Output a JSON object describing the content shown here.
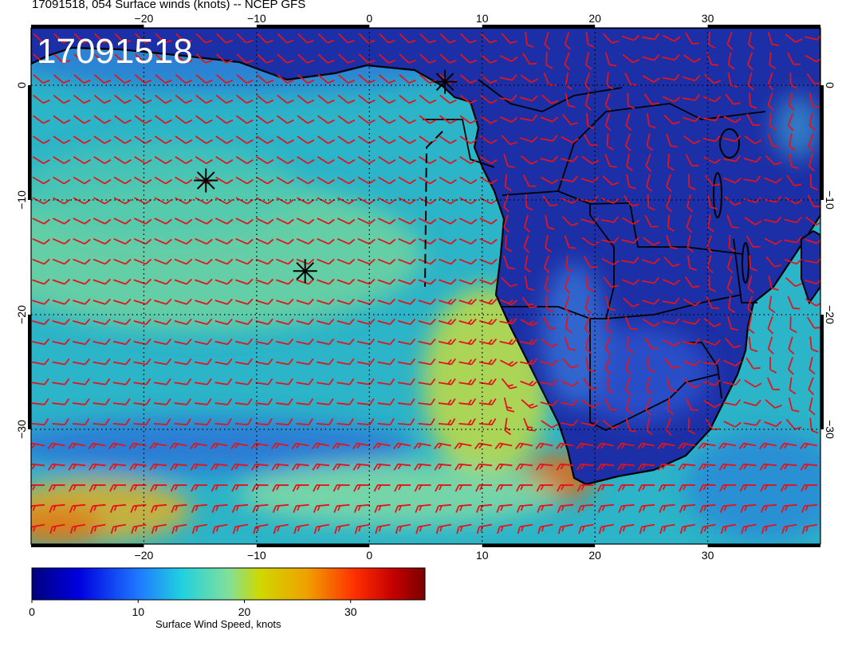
{
  "header": {
    "title": "17091518, 054 Surface winds (knots) -- NCEP GFS",
    "timestamp": "17091518"
  },
  "map": {
    "lon_range": [
      -30,
      40
    ],
    "lat_range": [
      -40,
      5
    ],
    "lon_ticks": [
      {
        "value": -20,
        "label": "−20"
      },
      {
        "value": -10,
        "label": "−10"
      },
      {
        "value": 0,
        "label": "0"
      },
      {
        "value": 10,
        "label": "10"
      },
      {
        "value": 20,
        "label": "20"
      },
      {
        "value": 30,
        "label": "30"
      }
    ],
    "lat_ticks": [
      {
        "value": 0,
        "label": "0"
      },
      {
        "value": -10,
        "label": "−10"
      },
      {
        "value": -20,
        "label": "−20"
      },
      {
        "value": -30,
        "label": "−30"
      }
    ],
    "markers": [
      {
        "name": "marker-1",
        "lon": -14.5,
        "lat": -8.3
      },
      {
        "name": "marker-2",
        "lon": -5.7,
        "lat": -16.2
      },
      {
        "name": "marker-3",
        "lon": 6.7,
        "lat": 0.3
      }
    ],
    "colors": {
      "land": "#1b2a9e",
      "ocean": "#2fb6c8",
      "barb": "#e3141b",
      "coast": "#000000"
    }
  },
  "colorbar": {
    "title": "Surface Wind Speed, knots",
    "range": [
      0,
      37
    ],
    "ticks": [
      {
        "value": 0,
        "label": "0"
      },
      {
        "value": 10,
        "label": "10"
      },
      {
        "value": 20,
        "label": "20"
      },
      {
        "value": 30,
        "label": "30"
      }
    ]
  }
}
